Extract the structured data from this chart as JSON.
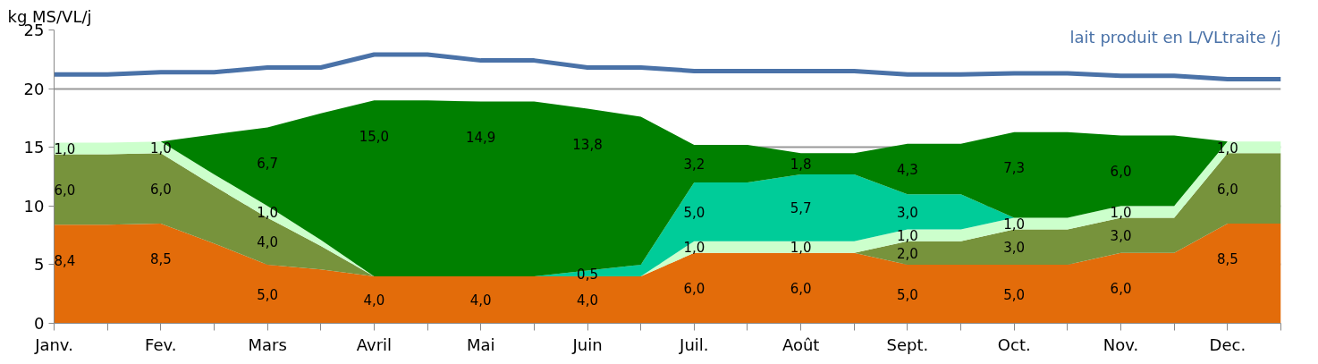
{
  "chart_data": {
    "type": "area",
    "stacked": true,
    "ylabel": "kg MS/VL/j",
    "categories": [
      "Janv.",
      null,
      "Fev.",
      null,
      "Mars",
      null,
      "Avril",
      null,
      "Mai",
      null,
      "Juin",
      null,
      "Juil.",
      null,
      "Août",
      null,
      "Sept.",
      null,
      "Oct.",
      null,
      "Nov.",
      null,
      "Dec.",
      null
    ],
    "ylim": [
      0,
      25
    ],
    "yticks": [
      0,
      5,
      10,
      15,
      20,
      25
    ],
    "grid": "y",
    "series": [
      {
        "color": "#e36c0a",
        "values": [
          8.4,
          8.4,
          8.5,
          6.8,
          5.0,
          4.6,
          4.0,
          4.0,
          4.0,
          4.0,
          4.0,
          4.0,
          6.0,
          6.0,
          6.0,
          6.0,
          5.0,
          5.0,
          5.0,
          5.0,
          6.0,
          6.0,
          8.5,
          8.5
        ],
        "value_labels": [
          "8,4",
          null,
          "8,5",
          null,
          "5,0",
          null,
          "4,0",
          null,
          "4,0",
          null,
          "4,0",
          null,
          "6,0",
          null,
          "6,0",
          null,
          "5,0",
          null,
          "5,0",
          null,
          "6,0",
          null,
          "8,5",
          null
        ]
      },
      {
        "color": "#77933c",
        "values": [
          6.0,
          6.0,
          6.0,
          4.9,
          4.0,
          2.0,
          0,
          0,
          0,
          0,
          0,
          0,
          0,
          0,
          0,
          0,
          2.0,
          2.0,
          3.0,
          3.0,
          3.0,
          3.0,
          6.0,
          6.0
        ],
        "value_labels": [
          "6,0",
          null,
          "6,0",
          null,
          "4,0",
          null,
          null,
          null,
          null,
          null,
          null,
          null,
          null,
          null,
          null,
          null,
          "2,0",
          null,
          "3,0",
          null,
          "3,0",
          null,
          "6,0",
          null
        ]
      },
      {
        "color": "#ccffcc",
        "values": [
          1.0,
          1.0,
          1.0,
          1.0,
          1.0,
          0.5,
          0,
          0,
          0,
          0,
          0,
          0,
          1.0,
          1.0,
          1.0,
          1.0,
          1.0,
          1.0,
          1.0,
          1.0,
          1.0,
          1.0,
          1.0,
          1.0
        ],
        "value_labels": [
          "1,0",
          null,
          "1,0",
          null,
          "1,0",
          null,
          null,
          null,
          null,
          null,
          null,
          null,
          "1,0",
          null,
          "1,0",
          null,
          "1,0",
          null,
          "1,0",
          null,
          "1,0",
          null,
          "1,0",
          null
        ]
      },
      {
        "color": "#00cc99",
        "values": [
          null,
          null,
          null,
          null,
          null,
          null,
          null,
          null,
          null,
          0,
          0.5,
          1.0,
          5.0,
          5.0,
          5.7,
          5.7,
          3.0,
          3.0,
          0,
          null,
          null,
          null,
          null,
          null
        ],
        "value_labels": [
          null,
          null,
          null,
          null,
          null,
          null,
          null,
          null,
          null,
          null,
          "0,5",
          null,
          "5,0",
          null,
          "5,7",
          null,
          "3,0",
          null,
          null,
          null,
          null,
          null,
          null,
          null
        ]
      },
      {
        "color": "#008000",
        "values": [
          null,
          null,
          0,
          3.4,
          6.7,
          10.8,
          15.0,
          15.0,
          14.9,
          14.9,
          13.8,
          12.6,
          3.2,
          3.2,
          1.8,
          1.8,
          4.3,
          4.3,
          7.3,
          7.3,
          6.0,
          6.0,
          0,
          null
        ],
        "value_labels": [
          null,
          null,
          null,
          null,
          "6,7",
          null,
          "15,0",
          null,
          "14,9",
          null,
          "13,8",
          null,
          "3,2",
          null,
          "1,8",
          null,
          "4,3",
          null,
          "7,3",
          null,
          "6,0",
          null,
          null,
          null
        ]
      },
      {
        "type": "line",
        "name": "lait produit en L/VLtraite /j",
        "color": "#4a72a8",
        "values": [
          21.2,
          21.2,
          21.4,
          21.4,
          21.8,
          21.8,
          22.9,
          22.9,
          22.4,
          22.4,
          21.8,
          21.8,
          21.5,
          21.5,
          21.5,
          21.5,
          21.2,
          21.2,
          21.3,
          21.3,
          21.1,
          21.1,
          20.8,
          20.8
        ]
      }
    ]
  }
}
